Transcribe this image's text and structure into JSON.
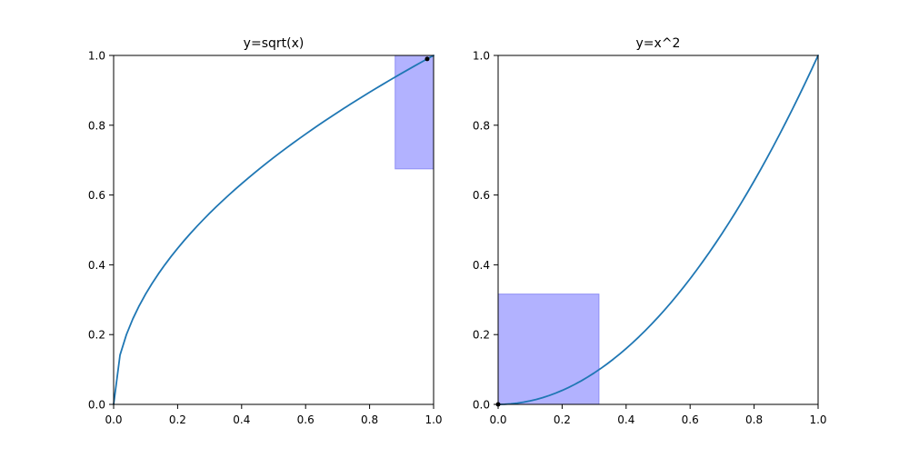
{
  "colors": {
    "line": "#1f77b4",
    "rect_fill": "#b2b2ff",
    "rect_stroke": "#8f8ff5",
    "point": "#000000"
  },
  "chart_data": [
    {
      "type": "line",
      "title": "y=sqrt(x)",
      "function": "sqrt",
      "xlim": [
        0,
        1
      ],
      "ylim": [
        0,
        1
      ],
      "xticks": [
        "0.0",
        "0.2",
        "0.4",
        "0.6",
        "0.8",
        "1.0"
      ],
      "yticks": [
        "0.0",
        "0.2",
        "0.4",
        "0.6",
        "0.8",
        "1.0"
      ],
      "x": [
        0,
        0.02,
        0.04,
        0.06,
        0.08,
        0.1,
        0.12,
        0.14,
        0.16,
        0.18,
        0.2,
        0.22,
        0.24,
        0.26,
        0.28,
        0.3,
        0.32,
        0.34,
        0.36,
        0.38,
        0.4,
        0.42,
        0.44,
        0.46,
        0.48,
        0.5,
        0.52,
        0.54,
        0.56,
        0.58,
        0.6,
        0.62,
        0.64,
        0.66,
        0.68,
        0.7,
        0.72,
        0.74,
        0.76,
        0.78,
        0.8,
        0.82,
        0.84,
        0.86,
        0.88,
        0.9,
        0.92,
        0.94,
        0.96,
        0.98,
        1.0
      ],
      "highlight_region": {
        "x": [
          0.88,
          1.0
        ],
        "y": [
          0.675,
          1.0
        ]
      },
      "marker": {
        "x": 0.98,
        "y": 0.99
      }
    },
    {
      "type": "line",
      "title": "y=x^2",
      "function": "square",
      "xlim": [
        0,
        1
      ],
      "ylim": [
        0,
        1
      ],
      "xticks": [
        "0.0",
        "0.2",
        "0.4",
        "0.6",
        "0.8",
        "1.0"
      ],
      "yticks": [
        "0.0",
        "0.2",
        "0.4",
        "0.6",
        "0.8",
        "1.0"
      ],
      "x": [
        0,
        0.02,
        0.04,
        0.06,
        0.08,
        0.1,
        0.12,
        0.14,
        0.16,
        0.18,
        0.2,
        0.22,
        0.24,
        0.26,
        0.28,
        0.3,
        0.32,
        0.34,
        0.36,
        0.38,
        0.4,
        0.42,
        0.44,
        0.46,
        0.48,
        0.5,
        0.52,
        0.54,
        0.56,
        0.58,
        0.6,
        0.62,
        0.64,
        0.66,
        0.68,
        0.7,
        0.72,
        0.74,
        0.76,
        0.78,
        0.8,
        0.82,
        0.84,
        0.86,
        0.88,
        0.9,
        0.92,
        0.94,
        0.96,
        0.98,
        1.0
      ],
      "highlight_region": {
        "x": [
          0.0,
          0.315
        ],
        "y": [
          0.0,
          0.316
        ]
      },
      "marker": {
        "x": 0.0,
        "y": 0.0
      }
    }
  ]
}
